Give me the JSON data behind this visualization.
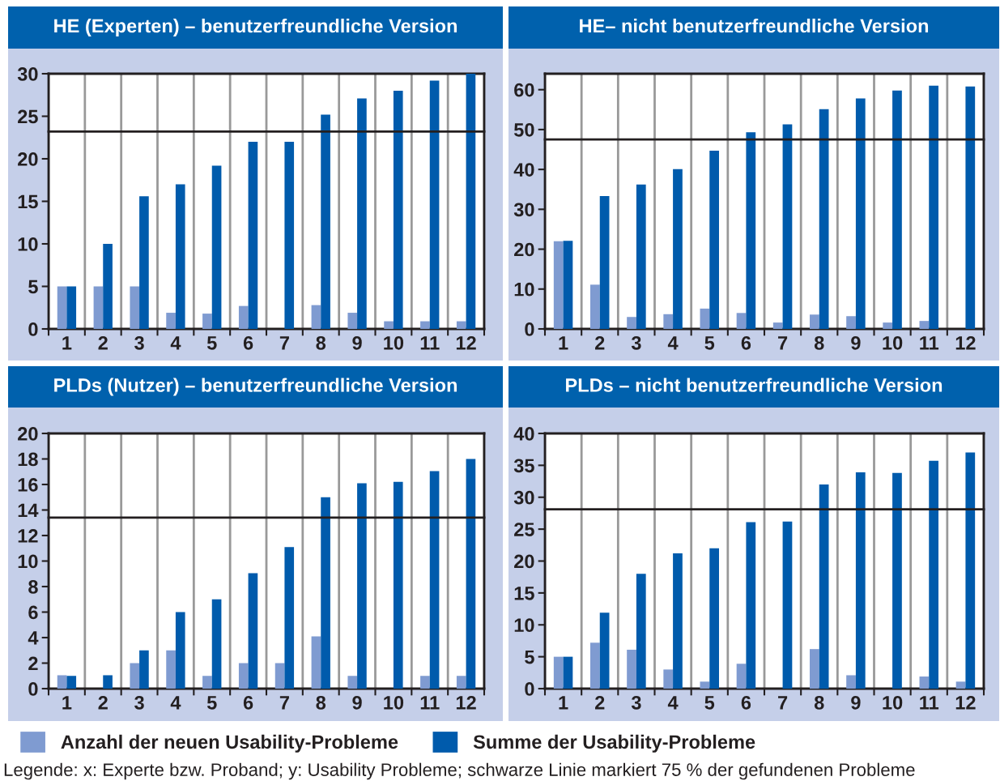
{
  "chart_data": [
    {
      "type": "bar",
      "title": "HE (Experten) – benutzerfreundliche Version",
      "categories": [
        "1",
        "2",
        "3",
        "4",
        "5",
        "6",
        "7",
        "8",
        "9",
        "10",
        "11",
        "12"
      ],
      "series": [
        {
          "name": "Anzahl der neuen Usability-Probleme",
          "color": "#7f9bd1",
          "values": [
            5,
            5,
            5,
            1.9,
            1.8,
            2.7,
            0,
            2.8,
            1.9,
            0.9,
            0.9,
            0.9
          ]
        },
        {
          "name": "Summe der Usability-Probleme",
          "color": "#005bac",
          "values": [
            5,
            10,
            15.6,
            17,
            19.2,
            22,
            22,
            25.2,
            27.1,
            28,
            29.2,
            30
          ]
        }
      ],
      "ylim": [
        0,
        30
      ],
      "yticks": [
        0,
        5,
        10,
        15,
        20,
        25,
        30
      ],
      "grid": "x",
      "legend": "bottom",
      "ref_lines": [
        {
          "axis": "y",
          "value": 23.2,
          "color": "#231f20"
        }
      ]
    },
    {
      "type": "bar",
      "title": "HE– nicht benutzerfreundliche Version",
      "categories": [
        "1",
        "2",
        "3",
        "4",
        "5",
        "6",
        "7",
        "8",
        "9",
        "10",
        "11",
        "12"
      ],
      "series": [
        {
          "color": "#7f9bd1",
          "values": [
            22,
            11.1,
            3,
            3.7,
            5.1,
            4,
            1.6,
            3.6,
            3.2,
            1.6,
            2,
            0
          ]
        },
        {
          "color": "#005bac",
          "values": [
            22.1,
            33.3,
            36.2,
            40.1,
            44.7,
            49.3,
            51.3,
            55.1,
            57.8,
            59.8,
            61,
            60.8
          ]
        }
      ],
      "ylim": [
        0,
        64
      ],
      "yticks": [
        0,
        10,
        20,
        30,
        40,
        50,
        60
      ],
      "grid": "x",
      "ref_lines": [
        {
          "axis": "y",
          "value": 47.5,
          "color": "#231f20"
        }
      ]
    },
    {
      "type": "bar",
      "title": "PLDs (Nutzer) – benutzerfreundliche Version",
      "categories": [
        "1",
        "2",
        "3",
        "4",
        "5",
        "6",
        "7",
        "8",
        "9",
        "10",
        "11",
        "12"
      ],
      "series": [
        {
          "color": "#7f9bd1",
          "values": [
            1.05,
            0,
            2,
            3,
            1,
            2,
            2,
            4.1,
            1,
            0,
            1,
            1
          ]
        },
        {
          "color": "#005bac",
          "values": [
            1,
            1.05,
            3,
            6,
            7,
            9.05,
            11.1,
            15,
            16.1,
            16.2,
            17.05,
            18
          ]
        }
      ],
      "ylim": [
        0,
        20
      ],
      "yticks": [
        0,
        2,
        4,
        6,
        8,
        10,
        12,
        14,
        16,
        18,
        20
      ],
      "grid": "x",
      "ref_lines": [
        {
          "axis": "y",
          "value": 13.4,
          "color": "#231f20"
        }
      ]
    },
    {
      "type": "bar",
      "title": "PLDs – nicht benutzerfreundliche Version",
      "categories": [
        "1",
        "2",
        "3",
        "4",
        "5",
        "6",
        "7",
        "8",
        "9",
        "10",
        "11",
        "12"
      ],
      "series": [
        {
          "color": "#7f9bd1",
          "values": [
            5,
            7.2,
            6.1,
            3,
            1.1,
            3.9,
            0,
            6.2,
            2.1,
            0,
            1.9,
            1.1
          ]
        },
        {
          "color": "#005bac",
          "values": [
            5,
            11.9,
            18,
            21.2,
            22,
            26.1,
            26.2,
            32,
            33.9,
            33.8,
            35.7,
            37
          ]
        }
      ],
      "ylim": [
        0,
        40
      ],
      "yticks": [
        0,
        5,
        10,
        15,
        20,
        25,
        30,
        35,
        40
      ],
      "grid": "x",
      "ref_lines": [
        {
          "axis": "y",
          "value": 28.1,
          "color": "#231f20"
        }
      ],
      "annotations": [
        "Legende: x: Experte bzw. Proband; y: Usability Probleme; schwarze Linie markiert 75 % der gefundenen Probleme"
      ]
    }
  ]
}
